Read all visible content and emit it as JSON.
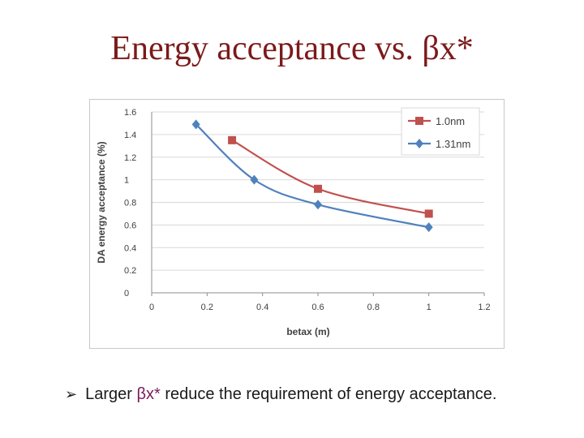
{
  "slide": {
    "title": "Energy acceptance vs. βx*",
    "bullet": {
      "marker": "➢",
      "prefix": "Larger ",
      "highlight": "βx*",
      "suffix": " reduce the requirement of energy acceptance."
    }
  },
  "chart_data": {
    "type": "line",
    "xlabel": "betax (m)",
    "ylabel": "DA energy acceptance (%)",
    "xlim": [
      0,
      1.2
    ],
    "ylim": [
      0,
      1.6
    ],
    "xticks": [
      "0",
      "0.2",
      "0.4",
      "0.6",
      "0.8",
      "1",
      "1.2"
    ],
    "yticks": [
      "0",
      "0.2",
      "0.4",
      "0.6",
      "0.8",
      "1",
      "1.2",
      "1.4",
      "1.6"
    ],
    "grid": "horizontal",
    "legend": "top-right",
    "series": [
      {
        "name": "1.0nm",
        "color": "#c0504d",
        "marker": "square",
        "x": [
          0.29,
          0.6,
          1.0
        ],
        "y": [
          1.35,
          0.92,
          0.7
        ]
      },
      {
        "name": "1.31nm",
        "color": "#4f81bd",
        "marker": "diamond",
        "x": [
          0.16,
          0.37,
          0.6,
          1.0
        ],
        "y": [
          1.49,
          1.0,
          0.78,
          0.58
        ]
      }
    ]
  }
}
